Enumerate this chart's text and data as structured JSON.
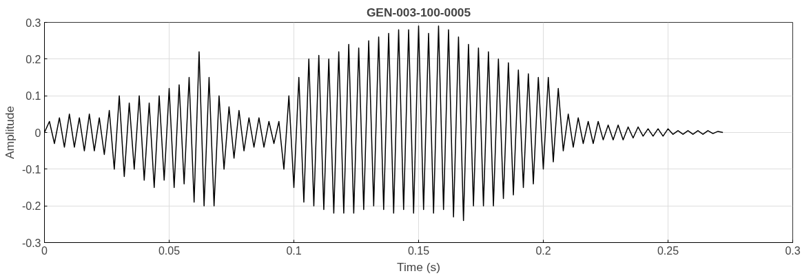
{
  "chart_data": {
    "type": "line",
    "title": "GEN-003-100-0005",
    "xlabel": "Time (s)",
    "ylabel": "Amplitude",
    "xlim": [
      0,
      0.3
    ],
    "ylim": [
      -0.3,
      0.3
    ],
    "xticks": [
      0,
      0.05,
      0.1,
      0.15,
      0.2,
      0.25,
      0.3
    ],
    "yticks": [
      -0.3,
      -0.2,
      -0.1,
      0,
      0.1,
      0.2,
      0.3
    ],
    "grid": true,
    "series": [
      {
        "color": "#000000",
        "x": [
          0,
          0.002,
          0.004,
          0.006,
          0.008,
          0.01,
          0.012,
          0.014,
          0.016,
          0.018,
          0.02,
          0.022,
          0.024,
          0.026,
          0.028,
          0.03,
          0.032,
          0.034,
          0.036,
          0.038,
          0.04,
          0.042,
          0.044,
          0.046,
          0.048,
          0.05,
          0.052,
          0.054,
          0.056,
          0.058,
          0.06,
          0.062,
          0.064,
          0.066,
          0.068,
          0.07,
          0.072,
          0.074,
          0.076,
          0.078,
          0.08,
          0.082,
          0.084,
          0.086,
          0.088,
          0.09,
          0.092,
          0.094,
          0.096,
          0.098,
          0.1,
          0.102,
          0.104,
          0.106,
          0.108,
          0.11,
          0.112,
          0.114,
          0.116,
          0.118,
          0.12,
          0.122,
          0.124,
          0.126,
          0.128,
          0.13,
          0.132,
          0.134,
          0.136,
          0.138,
          0.14,
          0.142,
          0.144,
          0.146,
          0.148,
          0.15,
          0.152,
          0.154,
          0.156,
          0.158,
          0.16,
          0.162,
          0.164,
          0.166,
          0.168,
          0.17,
          0.172,
          0.174,
          0.176,
          0.178,
          0.18,
          0.182,
          0.184,
          0.186,
          0.188,
          0.19,
          0.192,
          0.194,
          0.196,
          0.198,
          0.2,
          0.202,
          0.204,
          0.206,
          0.208,
          0.21,
          0.212,
          0.214,
          0.216,
          0.218,
          0.22,
          0.222,
          0.224,
          0.226,
          0.228,
          0.23,
          0.232,
          0.234,
          0.236,
          0.238,
          0.24,
          0.242,
          0.244,
          0.246,
          0.248,
          0.25,
          0.252,
          0.254,
          0.256,
          0.258,
          0.26,
          0.262,
          0.264,
          0.266,
          0.268,
          0.27,
          0.272
        ],
        "values": [
          0,
          0.03,
          -0.03,
          0.04,
          -0.04,
          0.05,
          -0.04,
          0.04,
          -0.05,
          0.05,
          -0.05,
          0.04,
          -0.06,
          0.06,
          -0.1,
          0.1,
          -0.12,
          0.08,
          -0.1,
          0.1,
          -0.13,
          0.08,
          -0.15,
          0.1,
          -0.13,
          0.12,
          -0.15,
          0.13,
          -0.14,
          0.15,
          -0.19,
          0.22,
          -0.2,
          0.15,
          -0.2,
          0.1,
          -0.1,
          0.07,
          -0.07,
          0.06,
          -0.05,
          0.04,
          -0.04,
          0.04,
          -0.04,
          0.03,
          -0.03,
          0.03,
          -0.1,
          0.1,
          -0.15,
          0.15,
          -0.19,
          0.2,
          -0.2,
          0.21,
          -0.21,
          0.2,
          -0.22,
          0.22,
          -0.22,
          0.24,
          -0.22,
          0.23,
          -0.21,
          0.25,
          -0.2,
          0.26,
          -0.21,
          0.27,
          -0.22,
          0.28,
          -0.21,
          0.28,
          -0.22,
          0.29,
          -0.21,
          0.27,
          -0.22,
          0.29,
          -0.21,
          0.28,
          -0.23,
          0.26,
          -0.24,
          0.24,
          -0.2,
          0.23,
          -0.2,
          0.22,
          -0.2,
          0.2,
          -0.18,
          0.19,
          -0.17,
          0.17,
          -0.15,
          0.16,
          -0.14,
          0.15,
          -0.1,
          0.15,
          -0.08,
          0.12,
          -0.05,
          0.05,
          -0.04,
          0.04,
          -0.03,
          0.03,
          -0.03,
          0.03,
          -0.02,
          0.02,
          -0.02,
          0.02,
          -0.02,
          0.015,
          -0.015,
          0.015,
          -0.01,
          0.01,
          -0.01,
          0.01,
          -0.01,
          0.01,
          -0.005,
          0.005,
          -0.005,
          0.005,
          -0.005,
          0.005,
          -0.005,
          0.005,
          -0.003,
          0.003,
          0
        ]
      }
    ]
  }
}
